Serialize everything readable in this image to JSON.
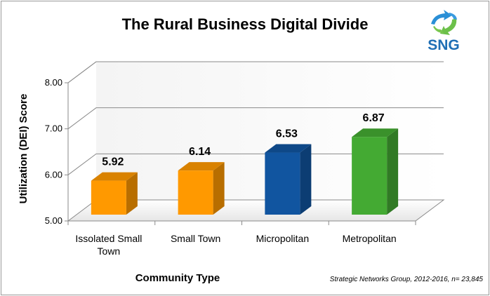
{
  "logo": {
    "text": "SNG",
    "colors": {
      "arrow_blue": "#2a8fd6",
      "arrow_green": "#6cc04a"
    }
  },
  "source_note": "Strategic Networks Group, 2012-2016, n= 23,845",
  "chart_data": {
    "type": "bar",
    "title": "The Rural Business Digital Divide",
    "xlabel": "Community Type",
    "ylabel": "Utilization (DEI) Score",
    "ylim": [
      5.0,
      8.0
    ],
    "yticks": [
      "5.00",
      "6.00",
      "7.00",
      "8.00"
    ],
    "grid": true,
    "legend": "none",
    "categories": [
      [
        "Issolated Small",
        "Town"
      ],
      [
        "Small Town"
      ],
      [
        "Micropolitan"
      ],
      [
        "Metropolitan"
      ]
    ],
    "values": [
      5.92,
      6.14,
      6.53,
      6.87
    ],
    "value_labels": [
      "5.92",
      "6.14",
      "6.53",
      "6.87"
    ],
    "colors": [
      "#ff9900",
      "#ff9900",
      "#1155a0",
      "#44aa33"
    ]
  }
}
